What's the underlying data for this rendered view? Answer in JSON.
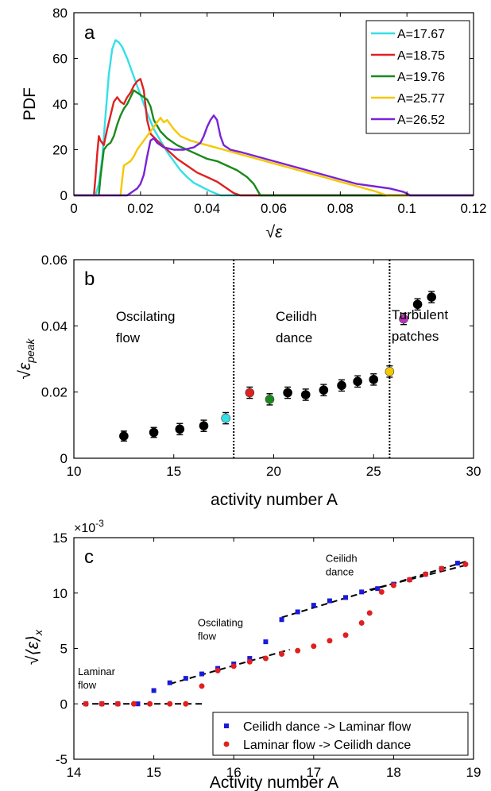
{
  "chart_data": [
    {
      "panel": "a",
      "type": "line",
      "xlabel": "√ε",
      "ylabel": "PDF",
      "xlim": [
        0,
        0.12
      ],
      "ylim": [
        0,
        80
      ],
      "xticks": [
        0,
        0.02,
        0.04,
        0.06,
        0.08,
        0.1,
        0.12
      ],
      "yticks": [
        0,
        20,
        40,
        60,
        80
      ],
      "legend_position": "top-right",
      "series": [
        {
          "name": "A=17.67",
          "color": "#33e0e8",
          "x": [
            0,
            0.0065,
            0.0075,
            0.0085,
            0.0095,
            0.0105,
            0.0115,
            0.0125,
            0.0135,
            0.0145,
            0.016,
            0.018,
            0.02,
            0.022,
            0.024,
            0.026,
            0.028,
            0.03,
            0.032,
            0.034,
            0.036,
            0.038,
            0.04,
            0.042,
            0.044,
            0.12
          ],
          "y": [
            0,
            0,
            5,
            16,
            35,
            53,
            64,
            68,
            67,
            65,
            60,
            52,
            44,
            36,
            29,
            24,
            19,
            15,
            11,
            8,
            5.5,
            4,
            2.5,
            1.2,
            0,
            0
          ]
        },
        {
          "name": "A=18.75",
          "color": "#e02020",
          "x": [
            0,
            0.006,
            0.0065,
            0.007,
            0.0075,
            0.008,
            0.009,
            0.01,
            0.011,
            0.012,
            0.013,
            0.014,
            0.015,
            0.016,
            0.017,
            0.018,
            0.019,
            0.02,
            0.021,
            0.022,
            0.023,
            0.025,
            0.028,
            0.031,
            0.034,
            0.037,
            0.04,
            0.043,
            0.046,
            0.048,
            0.05,
            0.12
          ],
          "y": [
            0,
            0,
            8,
            18,
            26,
            24,
            22,
            29,
            35,
            41,
            43,
            41,
            40,
            43,
            45,
            48,
            50,
            51,
            46,
            33,
            27,
            24,
            20,
            16,
            13,
            10,
            8,
            6,
            3,
            1,
            0,
            0
          ]
        },
        {
          "name": "A=19.76",
          "color": "#1a8a1a",
          "x": [
            0,
            0.0075,
            0.008,
            0.009,
            0.01,
            0.011,
            0.012,
            0.013,
            0.014,
            0.015,
            0.016,
            0.017,
            0.018,
            0.019,
            0.02,
            0.021,
            0.022,
            0.023,
            0.024,
            0.026,
            0.028,
            0.031,
            0.034,
            0.037,
            0.04,
            0.043,
            0.046,
            0.049,
            0.052,
            0.054,
            0.056,
            0.12
          ],
          "y": [
            0,
            0,
            8,
            20,
            22,
            23,
            26,
            31,
            35,
            38,
            40,
            43,
            46,
            45,
            44,
            43,
            42,
            39,
            33,
            28,
            25,
            22,
            20,
            18,
            16,
            15,
            13,
            11,
            8,
            5,
            0,
            0
          ]
        },
        {
          "name": "A=25.77",
          "color": "#f5c800",
          "x": [
            0,
            0.014,
            0.0145,
            0.015,
            0.016,
            0.017,
            0.018,
            0.019,
            0.02,
            0.021,
            0.022,
            0.023,
            0.024,
            0.025,
            0.026,
            0.027,
            0.028,
            0.029,
            0.03,
            0.032,
            0.035,
            0.04,
            0.045,
            0.05,
            0.055,
            0.06,
            0.065,
            0.07,
            0.075,
            0.08,
            0.085,
            0.09,
            0.092,
            0.094,
            0.12
          ],
          "y": [
            0,
            0,
            7,
            13,
            14,
            15,
            17,
            20,
            22,
            24,
            26,
            28,
            30,
            32,
            34,
            32,
            33,
            31,
            29,
            26,
            24,
            22,
            20,
            18,
            16,
            14,
            12,
            10,
            8,
            6,
            4,
            2,
            1,
            0,
            0
          ]
        },
        {
          "name": "A=26.52",
          "color": "#7a22d8",
          "x": [
            0,
            0.016,
            0.017,
            0.018,
            0.019,
            0.02,
            0.021,
            0.022,
            0.023,
            0.024,
            0.025,
            0.027,
            0.03,
            0.033,
            0.036,
            0.038,
            0.039,
            0.04,
            0.041,
            0.042,
            0.043,
            0.044,
            0.045,
            0.047,
            0.05,
            0.055,
            0.06,
            0.065,
            0.07,
            0.075,
            0.08,
            0.085,
            0.09,
            0.095,
            0.099,
            0.101,
            0.12
          ],
          "y": [
            0,
            0,
            1,
            2,
            3,
            5,
            9,
            17,
            24,
            25,
            23,
            21,
            20,
            20,
            21,
            23,
            26,
            30,
            33,
            35,
            33,
            26,
            22,
            20,
            19,
            17,
            15,
            13,
            11,
            9,
            7,
            5,
            4,
            3,
            1.5,
            0,
            0
          ]
        }
      ]
    },
    {
      "panel": "b",
      "type": "scatter",
      "xlabel": "activity number A",
      "ylabel": "√ε_peak",
      "xlim": [
        10,
        30
      ],
      "ylim": [
        0,
        0.06
      ],
      "xticks": [
        10,
        15,
        20,
        25,
        30
      ],
      "yticks": [
        0,
        0.02,
        0.04,
        0.06
      ],
      "vlines": [
        18,
        25.8
      ],
      "annotations": [
        {
          "lines": [
            "Oscilating",
            "flow"
          ],
          "x": 12.1,
          "y": 0.0415
        },
        {
          "lines": [
            "Ceilidh",
            "dance"
          ],
          "x": 20.1,
          "y": 0.0415
        },
        {
          "lines": [
            "Turbulent",
            "patches"
          ],
          "x": 25.9,
          "y": 0.042
        }
      ],
      "points": [
        {
          "x": 12.5,
          "y": 0.0067,
          "err": 0.0015,
          "color": "#000000"
        },
        {
          "x": 14.0,
          "y": 0.0078,
          "err": 0.0015,
          "color": "#000000"
        },
        {
          "x": 15.3,
          "y": 0.0088,
          "err": 0.0017,
          "color": "#000000"
        },
        {
          "x": 16.5,
          "y": 0.0098,
          "err": 0.0017,
          "color": "#000000"
        },
        {
          "x": 17.6,
          "y": 0.0121,
          "err": 0.0017,
          "color": "#33e0e8"
        },
        {
          "x": 18.8,
          "y": 0.0198,
          "err": 0.0017,
          "color": "#e02020"
        },
        {
          "x": 19.8,
          "y": 0.0178,
          "err": 0.0017,
          "color": "#1a8a1a"
        },
        {
          "x": 20.7,
          "y": 0.0198,
          "err": 0.0017,
          "color": "#000000"
        },
        {
          "x": 21.6,
          "y": 0.0192,
          "err": 0.0017,
          "color": "#000000"
        },
        {
          "x": 22.5,
          "y": 0.0206,
          "err": 0.0017,
          "color": "#000000"
        },
        {
          "x": 23.4,
          "y": 0.022,
          "err": 0.0017,
          "color": "#000000"
        },
        {
          "x": 24.2,
          "y": 0.0232,
          "err": 0.0017,
          "color": "#000000"
        },
        {
          "x": 25.0,
          "y": 0.0238,
          "err": 0.0017,
          "color": "#000000"
        },
        {
          "x": 25.8,
          "y": 0.0262,
          "err": 0.0017,
          "color": "#f5c800"
        },
        {
          "x": 26.5,
          "y": 0.0421,
          "err": 0.0017,
          "color": "#c030c0"
        },
        {
          "x": 27.2,
          "y": 0.0465,
          "err": 0.0017,
          "color": "#000000"
        },
        {
          "x": 27.9,
          "y": 0.0487,
          "err": 0.0017,
          "color": "#000000"
        }
      ]
    },
    {
      "panel": "c",
      "type": "scatter",
      "xlabel": "Activity number A",
      "ylabel": "√⟨ε⟩_x",
      "y_multiplier": "×10",
      "y_multiplier_exp": "-3",
      "xlim": [
        14,
        19
      ],
      "ylim": [
        -5,
        15
      ],
      "xticks": [
        14,
        15,
        16,
        17,
        18,
        19
      ],
      "yticks": [
        -5,
        0,
        5,
        10,
        15
      ],
      "legend_position": "bottom-right",
      "annotations": [
        {
          "lines": [
            "Laminar",
            "flow"
          ],
          "x": 14.05,
          "y": 2.6
        },
        {
          "lines": [
            "Oscilating",
            "flow"
          ],
          "x": 15.55,
          "y": 7.0
        },
        {
          "lines": [
            "Ceilidh",
            "dance"
          ],
          "x": 17.15,
          "y": 12.8
        }
      ],
      "fits": [
        {
          "x": [
            14.1,
            15.62
          ],
          "y": [
            0,
            0
          ]
        },
        {
          "x": [
            15.2,
            16.7
          ],
          "y": [
            1.8,
            4.9
          ]
        },
        {
          "x": [
            16.6,
            18.95
          ],
          "y": [
            7.8,
            12.95
          ]
        },
        {
          "x": [
            17.7,
            18.95
          ],
          "y": [
            10.3,
            12.6
          ]
        }
      ],
      "series": [
        {
          "name": "Ceilidh dance -> Laminar flow",
          "color": "#1a1ad8",
          "marker": "square",
          "x": [
            14.15,
            14.35,
            14.55,
            14.8,
            15.0,
            15.2,
            15.4,
            15.6,
            15.8,
            16.0,
            16.2,
            16.4,
            16.6,
            16.8,
            17.0,
            17.2,
            17.4,
            17.6,
            17.8,
            18.0,
            18.2,
            18.4,
            18.6,
            18.8
          ],
          "y": [
            0,
            0,
            0,
            0,
            1.2,
            1.9,
            2.3,
            2.7,
            3.2,
            3.6,
            4.1,
            5.6,
            7.6,
            8.3,
            8.9,
            9.3,
            9.6,
            10.1,
            10.4,
            10.8,
            11.2,
            11.7,
            12.2,
            12.7
          ]
        },
        {
          "name": "Laminar flow -> Ceilidh dance",
          "color": "#e02020",
          "marker": "circle",
          "x": [
            14.15,
            14.35,
            14.55,
            14.75,
            14.95,
            15.2,
            15.4,
            15.6,
            15.8,
            16.0,
            16.2,
            16.4,
            16.6,
            16.8,
            17.0,
            17.2,
            17.4,
            17.6,
            17.7,
            17.85,
            18.0,
            18.2,
            18.4,
            18.6,
            18.9
          ],
          "y": [
            0,
            0,
            0,
            0,
            0,
            0,
            0,
            1.6,
            3.0,
            3.4,
            3.8,
            4.1,
            4.5,
            4.8,
            5.2,
            5.7,
            6.2,
            7.3,
            8.2,
            10.1,
            10.7,
            11.2,
            11.7,
            12.2,
            12.6
          ]
        }
      ]
    }
  ],
  "panels": {
    "a": {
      "label": "a"
    },
    "b": {
      "label": "b"
    },
    "c": {
      "label": "c"
    }
  }
}
